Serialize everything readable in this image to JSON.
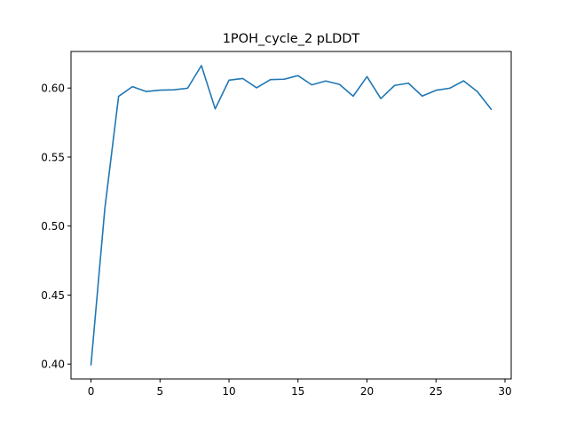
{
  "chart_data": {
    "type": "line",
    "title": "1POH_cycle_2 pLDDT",
    "xlabel": "",
    "ylabel": "",
    "xlim": [
      -1.45,
      30.45
    ],
    "ylim": [
      0.3892,
      0.6265
    ],
    "x_ticks": [
      0,
      5,
      10,
      15,
      20,
      25,
      30
    ],
    "y_ticks": [
      0.4,
      0.45,
      0.5,
      0.55,
      0.6
    ],
    "x_tick_labels": [
      "0",
      "5",
      "10",
      "15",
      "20",
      "25",
      "30"
    ],
    "y_tick_labels": [
      "0.40",
      "0.45",
      "0.50",
      "0.55",
      "0.60"
    ],
    "grid": false,
    "color": "#1f77b4",
    "series": [
      {
        "x": [
          0,
          1,
          2,
          3,
          4,
          5,
          6,
          7,
          8,
          9,
          10,
          11,
          12,
          13,
          14,
          15,
          16,
          17,
          18,
          19,
          20,
          21,
          22,
          23,
          24,
          25,
          26,
          27,
          28,
          29
        ],
        "values": [
          0.3995,
          0.5125,
          0.594,
          0.601,
          0.5975,
          0.5985,
          0.5987,
          0.5999,
          0.6163,
          0.5849,
          0.6057,
          0.6069,
          0.6002,
          0.6061,
          0.6064,
          0.609,
          0.6023,
          0.6051,
          0.6027,
          0.5941,
          0.6083,
          0.5924,
          0.6019,
          0.6035,
          0.5942,
          0.5984,
          0.5999,
          0.6052,
          0.5974,
          0.5846
        ]
      }
    ]
  }
}
